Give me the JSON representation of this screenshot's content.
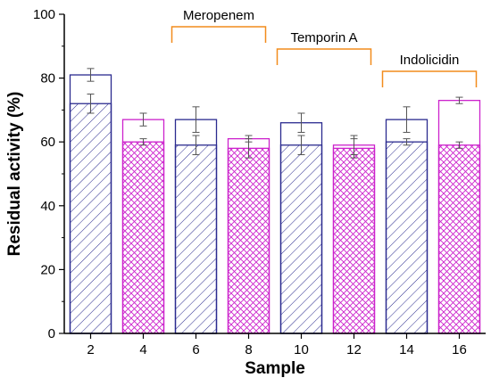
{
  "chart_data": {
    "type": "bar",
    "xlabel": "Sample",
    "ylabel": "Residual activity (%)",
    "ylim": [
      0,
      100
    ],
    "y_ticks": [
      0,
      20,
      40,
      60,
      80,
      100
    ],
    "grid": false,
    "categories": [
      "2",
      "4",
      "6",
      "8",
      "10",
      "12",
      "14",
      "16"
    ],
    "series": [
      {
        "values": [
          81,
          67,
          67,
          61,
          66,
          59,
          67,
          73
        ],
        "errors": [
          2,
          2,
          4,
          1,
          3,
          3,
          4,
          1
        ]
      },
      {
        "values": [
          72,
          60,
          59,
          58,
          59,
          58,
          60,
          59
        ],
        "errors": [
          3,
          1,
          3,
          3,
          3,
          3,
          1,
          1
        ]
      }
    ],
    "bar_colors": [
      "#2b2b8f",
      "#cc22cc",
      "#2b2b8f",
      "#cc22cc",
      "#2b2b8f",
      "#cc22cc",
      "#2b2b8f",
      "#cc22cc"
    ],
    "annotations": [
      {
        "label": "Meropenem",
        "from_category": "6",
        "to_category": "8"
      },
      {
        "label": "Temporin A",
        "from_category": "10",
        "to_category": "12"
      },
      {
        "label": "Indolicidin",
        "from_category": "14",
        "to_category": "16"
      }
    ],
    "bracket_color": "#f28c1c"
  }
}
